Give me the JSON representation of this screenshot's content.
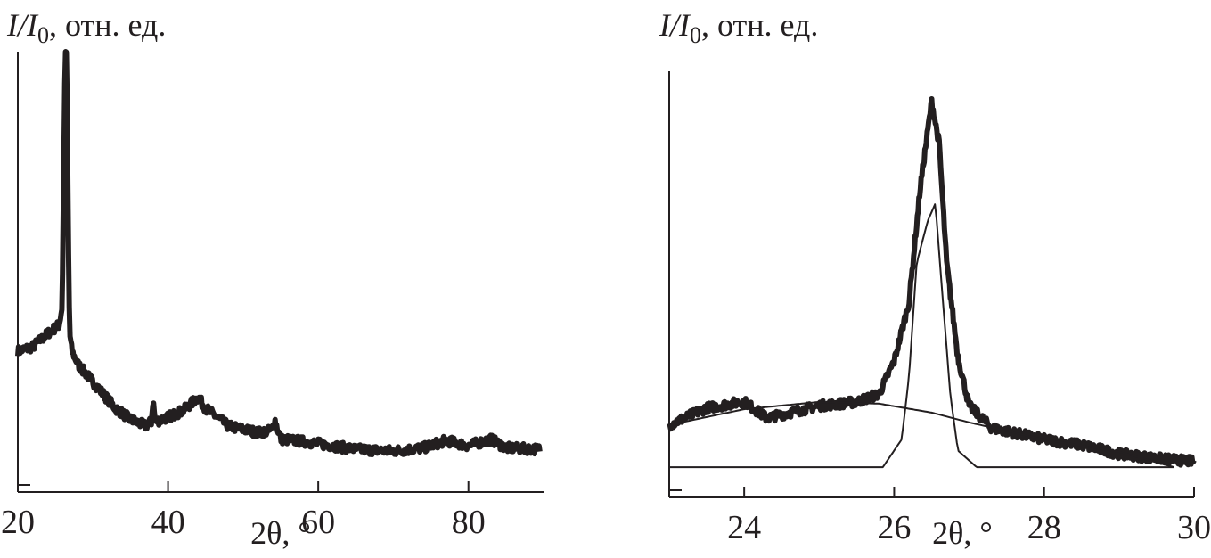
{
  "chart_data": [
    {
      "type": "line",
      "ylabel": "I/I0, отн. ед.",
      "ylabel_parts": {
        "symbol": "I/I",
        "subscript": "0",
        "unit": ", отн. ед."
      },
      "xlabel": "2θ, °",
      "xlim": [
        20,
        90
      ],
      "ylim": [
        0,
        100
      ],
      "xticks": [
        "20",
        "40",
        "60",
        "80"
      ],
      "xtick_values": [
        20,
        40,
        60,
        80
      ],
      "grid": false,
      "y_ticks_labeled": false,
      "series": [
        {
          "style": "thick noisy",
          "color": "#231f20",
          "x": [
            20,
            22,
            24,
            25.5,
            25.9,
            26.1,
            26.3,
            26.5,
            26.7,
            26.9,
            27.2,
            28,
            30,
            33,
            35,
            37,
            37.8,
            38,
            38.3,
            40,
            42,
            44,
            45,
            48,
            52,
            53.8,
            54.2,
            55,
            58,
            60,
            65,
            70,
            74,
            77,
            80,
            83,
            85,
            89.5
          ],
          "y": [
            32,
            33,
            36,
            38,
            42,
            70,
            100,
            100,
            60,
            36,
            32,
            29,
            25,
            19,
            16.5,
            15,
            16,
            21,
            16,
            17,
            18.5,
            21.5,
            19,
            15,
            13.5,
            14,
            16.5,
            12,
            11.5,
            11,
            9.7,
            9.3,
            10,
            11.7,
            10.5,
            12,
            10,
            9.7
          ]
        }
      ]
    },
    {
      "type": "line",
      "ylabel": "I/I0, отн. ед.",
      "ylabel_parts": {
        "symbol": "I/I",
        "subscript": "0",
        "unit": ", отн. ед."
      },
      "xlabel": "2θ, °",
      "xlim": [
        23,
        30
      ],
      "ylim": [
        0,
        100
      ],
      "xticks": [
        "24",
        "26",
        "28",
        "30"
      ],
      "xtick_values": [
        24,
        26,
        28,
        30
      ],
      "grid": false,
      "y_ticks_labeled": false,
      "series": [
        {
          "style": "thick noisy",
          "color": "#231f20",
          "x": [
            23,
            23.5,
            24,
            24.3,
            25,
            25.5,
            25.8,
            26.0,
            26.2,
            26.35,
            26.5,
            26.6,
            26.7,
            26.85,
            27,
            27.3,
            28,
            28.5,
            29,
            29.5,
            30
          ],
          "y": [
            17,
            21,
            22.5,
            18.6,
            21.5,
            22.4,
            24.3,
            32,
            46,
            73,
            93,
            83,
            55,
            33,
            21.5,
            16.3,
            13.6,
            12.3,
            10.2,
            9.2,
            8.4
          ]
        },
        {
          "style": "thin smooth",
          "color": "#231f20",
          "x": [
            23,
            24,
            25,
            25.8,
            26.5,
            27,
            28,
            29,
            29.73
          ],
          "y": [
            17,
            20.7,
            22.4,
            22,
            19.9,
            17.6,
            13.6,
            10.7,
            7.1
          ]
        },
        {
          "style": "thin smooth",
          "color": "#231f20",
          "x": [
            23,
            25.85,
            26.1,
            26.2,
            26.3,
            26.45,
            26.55,
            26.65,
            26.75,
            26.85,
            27.1,
            29.73
          ],
          "y": [
            7.1,
            7.1,
            13.6,
            28.7,
            55,
            65,
            69,
            46,
            24,
            11,
            7.1,
            7.1
          ]
        }
      ]
    }
  ]
}
